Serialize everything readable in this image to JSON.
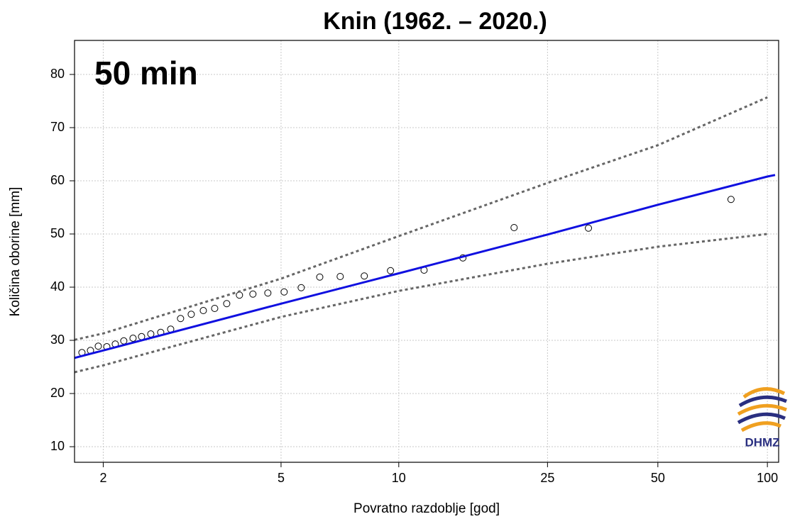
{
  "chart_data": {
    "type": "scatter",
    "title": "Knin (1962. – 2020.)",
    "annotation": "50 min",
    "xlabel": "Povratno razdoblje [god]",
    "ylabel": "Količina oborine [mm]",
    "xscale": "gumbel",
    "xlim": [
      1.77,
      107.4
    ],
    "ylim": [
      7.07,
      86.4
    ],
    "xticks": [
      2,
      5,
      10,
      25,
      50,
      100
    ],
    "yticks": [
      10,
      20,
      30,
      40,
      50,
      60,
      70,
      80
    ],
    "grid": true,
    "logo": "DHMZ",
    "series": [
      {
        "style": "markers",
        "color": "#000000",
        "x": [
          1.825,
          1.892,
          1.957,
          2.032,
          2.111,
          2.195,
          2.292,
          2.387,
          2.496,
          2.621,
          2.755,
          2.897,
          3.061,
          3.261,
          3.464,
          3.696,
          3.962,
          4.268,
          4.64,
          5.089,
          5.612,
          6.25,
          7.047,
          8.13,
          9.515,
          11.66,
          14.79,
          20.3,
          32.3,
          79.4
        ],
        "values": [
          27.7,
          28.1,
          28.9,
          28.8,
          29.3,
          29.9,
          30.4,
          30.7,
          31.2,
          31.5,
          32.1,
          34.1,
          34.9,
          35.6,
          36.0,
          36.9,
          38.5,
          38.7,
          38.9,
          39.1,
          39.9,
          41.9,
          42.0,
          42.1,
          43.1,
          43.2,
          45.5,
          51.2,
          51.1,
          56.5
        ]
      },
      {
        "style": "solid",
        "color": "#1010e0",
        "x": [
          1.77,
          2,
          5,
          10,
          25,
          50,
          100,
          105
        ],
        "values": [
          26.7,
          28.1,
          36.9,
          42.6,
          49.9,
          55.5,
          60.8,
          61.1
        ]
      },
      {
        "style": "dotted",
        "color": "#666666",
        "x": [
          1.77,
          2,
          5,
          10,
          25,
          50,
          100
        ],
        "values": [
          30.1,
          31.3,
          41.6,
          49.6,
          59.6,
          66.7,
          75.7
        ]
      },
      {
        "style": "dotted",
        "color": "#666666",
        "x": [
          1.77,
          2,
          5,
          10,
          25,
          50,
          100
        ],
        "values": [
          24.0,
          25.3,
          34.4,
          39.3,
          44.4,
          47.6,
          50.0
        ]
      }
    ]
  }
}
